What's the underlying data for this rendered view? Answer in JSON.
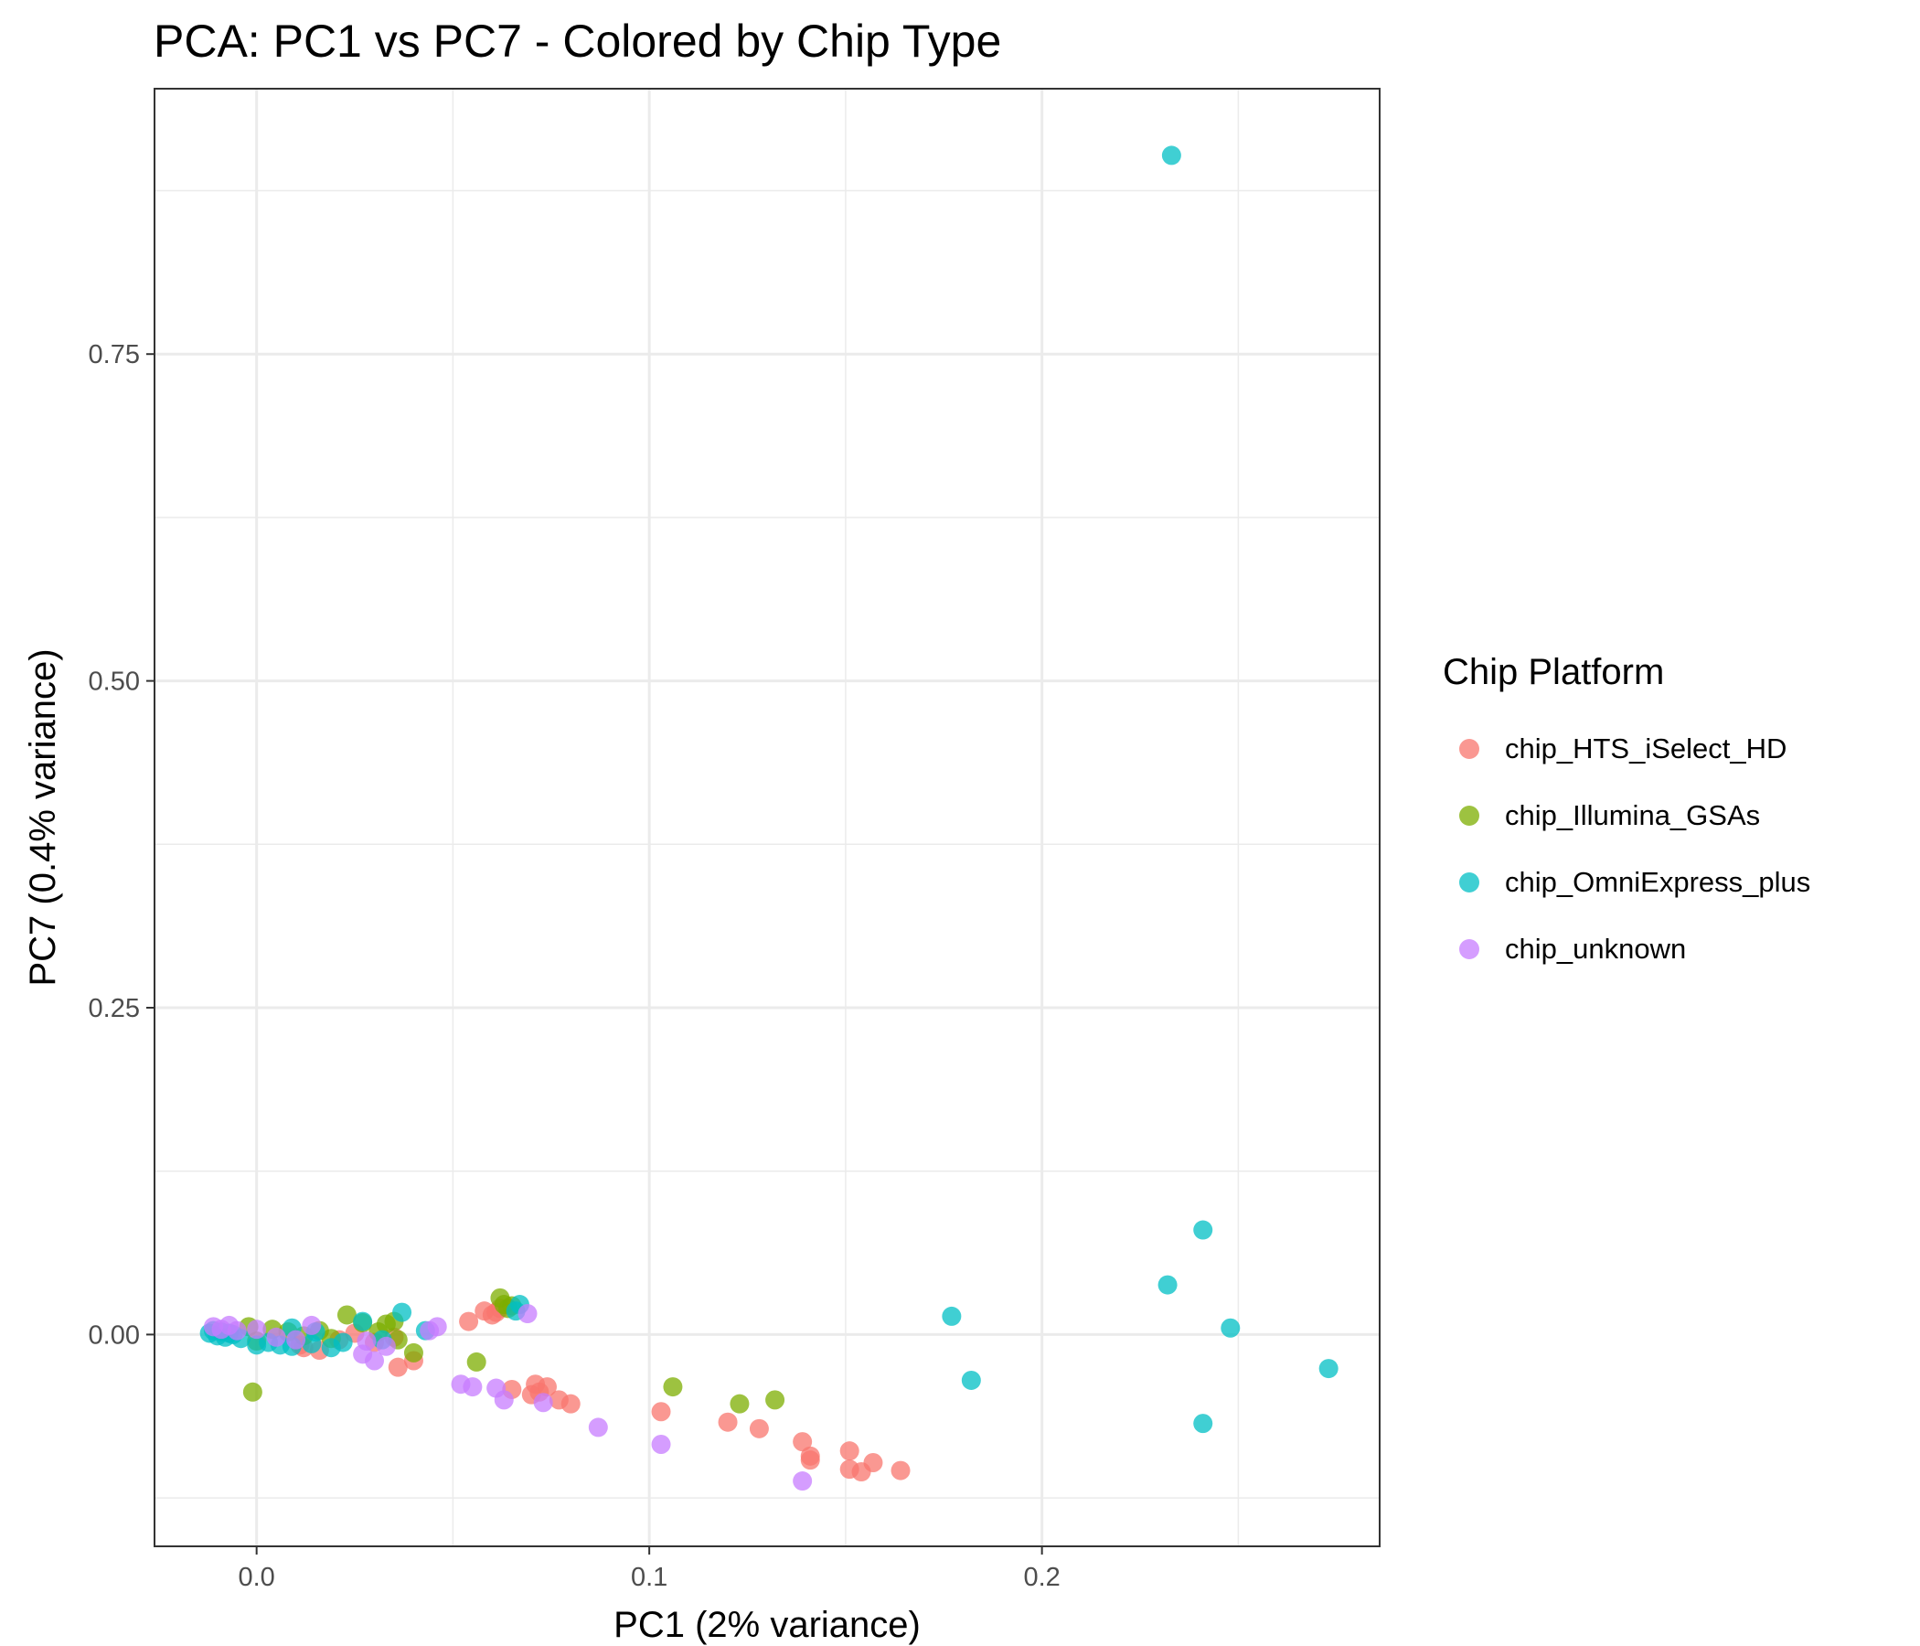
{
  "chart_data": {
    "type": "scatter",
    "title": "PCA: PC1 vs PC7 - Colored by Chip Type",
    "xlabel": "PC1 (2% variance)",
    "ylabel": "PC7 (0.4% variance)",
    "xlim": [
      -0.026,
      0.286
    ],
    "ylim": [
      -0.162,
      0.953
    ],
    "x_ticks": [
      0.0,
      0.1,
      0.2
    ],
    "x_tick_labels": [
      "0.0",
      "0.1",
      "0.2"
    ],
    "y_ticks": [
      0.0,
      0.25,
      0.5,
      0.75
    ],
    "y_tick_labels": [
      "0.00",
      "0.25",
      "0.50",
      "0.75"
    ],
    "grid": true,
    "legend": {
      "title": "Chip Platform",
      "position": "right"
    },
    "series": [
      {
        "name": "chip_HTS_iSelect_HD",
        "color": "#F8766D",
        "points": [
          [
            0.011,
            -0.008
          ],
          [
            0.016,
            -0.012
          ],
          [
            0.012,
            -0.01
          ],
          [
            0.021,
            -0.004
          ],
          [
            0.025,
            0.001
          ],
          [
            0.03,
            -0.006
          ],
          [
            0.035,
            -0.002
          ],
          [
            0.036,
            -0.025
          ],
          [
            0.04,
            -0.02
          ],
          [
            0.054,
            0.01
          ],
          [
            0.058,
            0.018
          ],
          [
            0.06,
            0.015
          ],
          [
            0.061,
            0.017
          ],
          [
            0.062,
            0.02
          ],
          [
            0.065,
            -0.042
          ],
          [
            0.07,
            -0.046
          ],
          [
            0.071,
            -0.038
          ],
          [
            0.072,
            -0.044
          ],
          [
            0.074,
            -0.04
          ],
          [
            0.077,
            -0.05
          ],
          [
            0.08,
            -0.053
          ],
          [
            0.103,
            -0.059
          ],
          [
            0.12,
            -0.067
          ],
          [
            0.128,
            -0.072
          ],
          [
            0.139,
            -0.082
          ],
          [
            0.141,
            -0.093
          ],
          [
            0.141,
            -0.096
          ],
          [
            0.151,
            -0.089
          ],
          [
            0.151,
            -0.103
          ],
          [
            0.154,
            -0.105
          ],
          [
            0.157,
            -0.098
          ],
          [
            0.164,
            -0.104
          ]
        ]
      },
      {
        "name": "chip_Illumina_GSAs",
        "color": "#7CAE00",
        "points": [
          [
            -0.002,
            0.006
          ],
          [
            0.0,
            -0.005
          ],
          [
            -0.001,
            -0.044
          ],
          [
            0.004,
            0.004
          ],
          [
            0.008,
            0.002
          ],
          [
            0.012,
            -0.001
          ],
          [
            0.016,
            0.003
          ],
          [
            0.019,
            -0.003
          ],
          [
            0.023,
            0.015
          ],
          [
            0.027,
            0.009
          ],
          [
            0.031,
            0.002
          ],
          [
            0.033,
            0.008
          ],
          [
            0.035,
            0.01
          ],
          [
            0.036,
            -0.004
          ],
          [
            0.04,
            -0.014
          ],
          [
            0.056,
            -0.021
          ],
          [
            0.062,
            0.028
          ],
          [
            0.063,
            0.023
          ],
          [
            0.064,
            0.02
          ],
          [
            0.065,
            0.022
          ],
          [
            0.106,
            -0.04
          ],
          [
            0.123,
            -0.053
          ],
          [
            0.132,
            -0.05
          ]
        ]
      },
      {
        "name": "chip_OmniExpress_plus",
        "color": "#00BFC4",
        "points": [
          [
            -0.012,
            0.001
          ],
          [
            -0.011,
            0.003
          ],
          [
            -0.01,
            -0.001
          ],
          [
            -0.009,
            0.002
          ],
          [
            -0.008,
            -0.002
          ],
          [
            -0.007,
            0.001
          ],
          [
            -0.006,
            0.0
          ],
          [
            -0.004,
            -0.003
          ],
          [
            0.0,
            -0.008
          ],
          [
            0.003,
            -0.006
          ],
          [
            0.006,
            -0.008
          ],
          [
            0.009,
            -0.009
          ],
          [
            0.014,
            -0.007
          ],
          [
            0.019,
            -0.01
          ],
          [
            0.022,
            -0.006
          ],
          [
            0.009,
            0.005
          ],
          [
            0.015,
            0.002
          ],
          [
            0.027,
            0.01
          ],
          [
            0.032,
            -0.004
          ],
          [
            0.037,
            0.017
          ],
          [
            0.043,
            0.003
          ],
          [
            0.066,
            0.018
          ],
          [
            0.067,
            0.023
          ],
          [
            0.177,
            0.014
          ],
          [
            0.182,
            -0.035
          ],
          [
            0.233,
            0.902
          ],
          [
            0.232,
            0.038
          ],
          [
            0.241,
            0.08
          ],
          [
            0.241,
            -0.068
          ],
          [
            0.248,
            0.005
          ],
          [
            0.273,
            -0.026
          ]
        ]
      },
      {
        "name": "chip_unknown",
        "color": "#C77CFF",
        "points": [
          [
            -0.011,
            0.006
          ],
          [
            -0.009,
            0.004
          ],
          [
            -0.007,
            0.007
          ],
          [
            -0.005,
            0.003
          ],
          [
            0.0,
            0.004
          ],
          [
            0.005,
            -0.002
          ],
          [
            0.01,
            -0.004
          ],
          [
            0.014,
            0.007
          ],
          [
            0.028,
            -0.005
          ],
          [
            0.03,
            -0.02
          ],
          [
            0.027,
            -0.015
          ],
          [
            0.033,
            -0.009
          ],
          [
            0.044,
            0.003
          ],
          [
            0.046,
            0.006
          ],
          [
            0.052,
            -0.038
          ],
          [
            0.055,
            -0.04
          ],
          [
            0.061,
            -0.041
          ],
          [
            0.063,
            -0.05
          ],
          [
            0.069,
            0.016
          ],
          [
            0.073,
            -0.052
          ],
          [
            0.087,
            -0.071
          ],
          [
            0.103,
            -0.084
          ],
          [
            0.139,
            -0.112
          ]
        ]
      }
    ]
  }
}
